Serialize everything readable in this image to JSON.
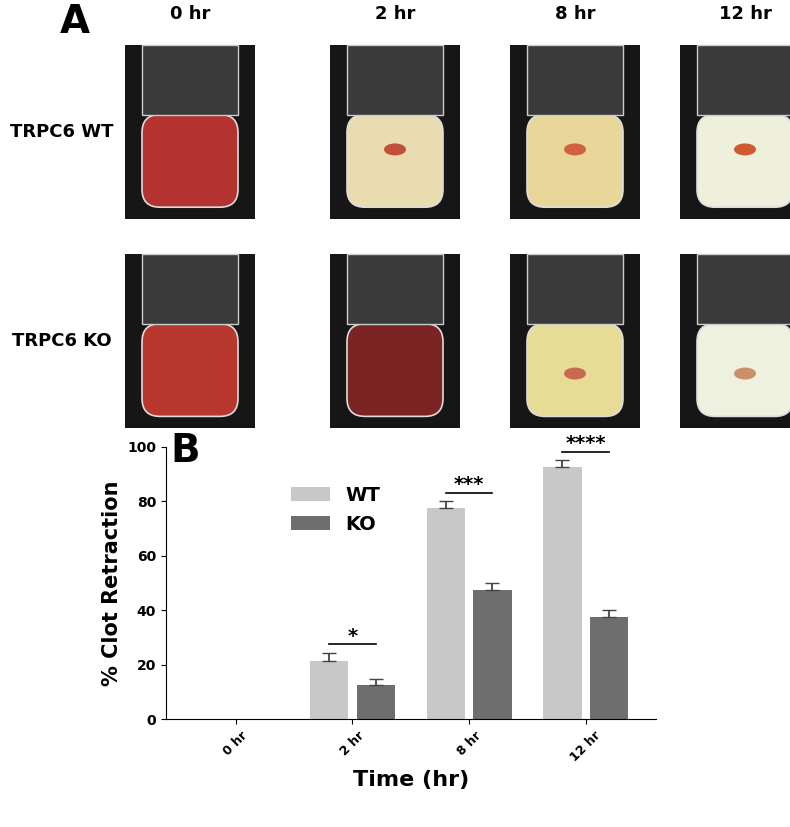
{
  "panel_a": {
    "label": "A",
    "columns": [
      "0 hr",
      "2 hr",
      "8 hr",
      "12 hr"
    ],
    "rows": [
      "TRPC6 WT",
      "TRPC6 KO"
    ]
  },
  "panel_b": {
    "label": "B"
  },
  "chart_data": {
    "type": "bar",
    "categories": [
      "0 hr",
      "2 hr",
      "8 hr",
      "12 hr"
    ],
    "x_label": "Time (hr)",
    "y_label": "% Clot Retraction",
    "series": [
      {
        "name": "WT",
        "color": "#c8c8c8",
        "values": [
          0,
          21.5,
          77.5,
          92.5
        ],
        "errors": [
          null,
          3,
          2.5,
          2.5
        ]
      },
      {
        "name": "KO",
        "color": "#6e6e6e",
        "values": [
          0,
          12.5,
          47.5,
          37.5
        ],
        "errors": [
          null,
          2.5,
          2.5,
          2.5
        ]
      }
    ],
    "annotations": [
      {
        "category": "2 hr",
        "text": "*"
      },
      {
        "category": "8 hr",
        "text": "***"
      },
      {
        "category": "12 hr",
        "text": "****"
      }
    ],
    "ylim": [
      0,
      100
    ],
    "yticks": [
      0,
      20,
      40,
      60,
      80,
      100
    ],
    "legend": "upper left",
    "grid": false
  }
}
